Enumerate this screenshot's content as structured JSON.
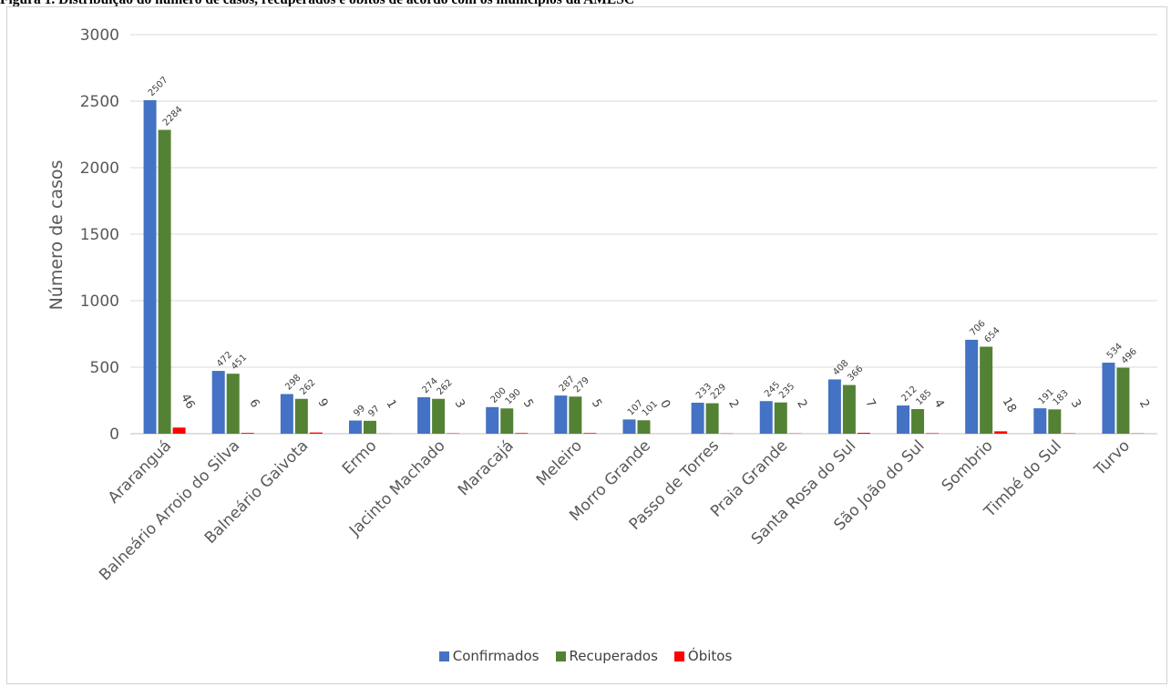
{
  "figure": {
    "title": "Figura 1. Distribuição do número de casos, recuperados e óbitos de acordo com os municípios da AMESC"
  },
  "chart_data": {
    "type": "bar",
    "title": "",
    "xlabel": "",
    "ylabel": "Número de casos",
    "ylim": [
      0,
      3000
    ],
    "yticks": [
      "0",
      "500",
      "1000",
      "1500",
      "2000",
      "2500",
      "3000"
    ],
    "grid": "horizontal",
    "legend_position": "bottom",
    "categories": [
      "Araranguá",
      "Balneário Arroio do Silva",
      "Balneário Gaivota",
      "Ermo",
      "Jacinto Machado",
      "Maracajá",
      "Meleiro",
      "Morro Grande",
      "Passo de Torres",
      "Praia Grande",
      "Santa Rosa do Sul",
      "São João do Sul",
      "Sombrio",
      "Timbé do Sul",
      "Turvo"
    ],
    "series": [
      {
        "name": "Confirmados",
        "color": "#4472c4",
        "values": [
          2507,
          472,
          298,
          99,
          274,
          200,
          287,
          107,
          233,
          245,
          408,
          212,
          706,
          191,
          534
        ]
      },
      {
        "name": "Recuperados",
        "color": "#548235",
        "values": [
          2284,
          451,
          262,
          97,
          262,
          190,
          279,
          101,
          229,
          235,
          366,
          185,
          654,
          183,
          496
        ]
      },
      {
        "name": "Óbitos",
        "color": "#ff0000",
        "values": [
          46,
          6,
          9,
          1,
          3,
          5,
          5,
          0,
          2,
          2,
          7,
          4,
          18,
          3,
          2
        ]
      }
    ]
  }
}
